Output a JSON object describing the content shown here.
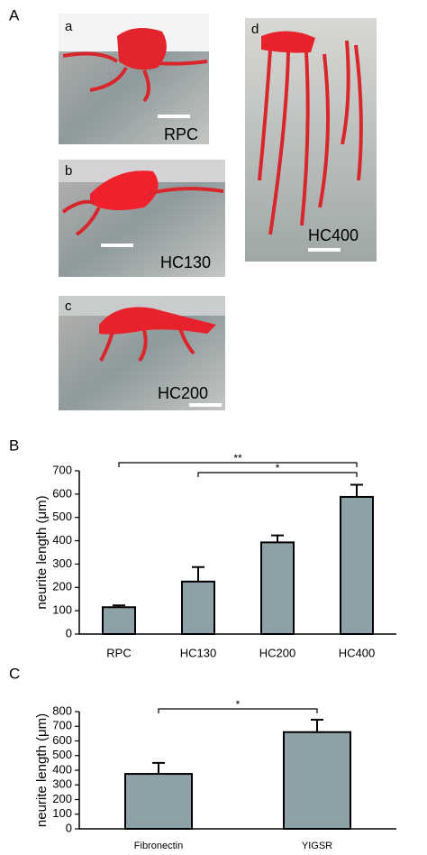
{
  "panels": {
    "a": "A",
    "b": "B",
    "c": "C"
  },
  "micrographs": [
    {
      "letter": "a",
      "label": "RPC"
    },
    {
      "letter": "b",
      "label": "HC130"
    },
    {
      "letter": "c",
      "label": "HC200"
    },
    {
      "letter": "d",
      "label": "HC400"
    }
  ],
  "chart_data": [
    {
      "type": "bar",
      "ylabel": "neurite length (μm)",
      "categories": [
        "RPC",
        "HC130",
        "HC200",
        "HC400"
      ],
      "values": [
        115,
        225,
        393,
        588
      ],
      "errors": [
        8,
        62,
        30,
        52
      ],
      "color": "#8fa1a8",
      "ylim": [
        0,
        700
      ],
      "yticks": [
        0,
        100,
        200,
        300,
        400,
        500,
        600,
        700
      ],
      "significance": [
        {
          "text": "**",
          "between": [
            "RPC",
            "HC400"
          ]
        },
        {
          "text": "*",
          "between": [
            "HC130",
            "HC400"
          ]
        }
      ]
    },
    {
      "type": "bar",
      "ylabel": "neurite length (μm)",
      "categories": [
        "Fibronectin",
        "YIGSR"
      ],
      "values": [
        375,
        660
      ],
      "errors": [
        75,
        85
      ],
      "color": "#8fa1a8",
      "ylim": [
        0,
        800
      ],
      "yticks": [
        0,
        100,
        200,
        300,
        400,
        500,
        600,
        700,
        800
      ],
      "significance": [
        {
          "text": "*",
          "between": [
            "Fibronectin",
            "YIGSR"
          ]
        }
      ]
    }
  ]
}
